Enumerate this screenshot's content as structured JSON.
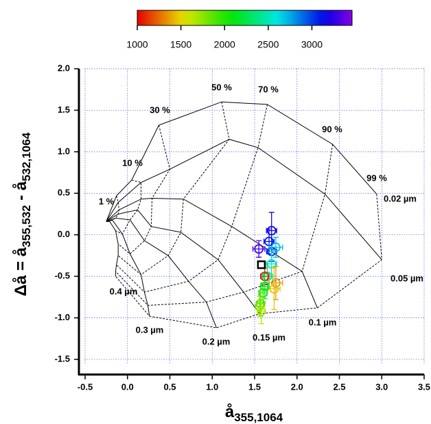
{
  "chart_data": {
    "type": "scatter",
    "xlabel": "å",
    "xlabel_sub": "355,1064",
    "ylabel_parts": [
      "Δå = å",
      "355,532",
      " - å",
      "532,1064"
    ],
    "xlim": [
      -0.5,
      3.5
    ],
    "xticks": [
      -0.5,
      {
        "value": 0,
        "label": "0.0"
      },
      0.5,
      {
        "value": 1,
        "label": "1.0"
      },
      1.5,
      {
        "value": 2,
        "label": "2.0"
      },
      2.5,
      {
        "value": 3,
        "label": "3.0"
      },
      3.5
    ],
    "ylim": [
      -1.55,
      2.0
    ],
    "yticks": [
      -1.5,
      {
        "value": -1,
        "label": "-1.0"
      },
      -0.5,
      {
        "value": 0,
        "label": "0.0"
      },
      0.5,
      {
        "value": 1,
        "label": "1.0"
      },
      1.5,
      {
        "value": 2,
        "label": "2.0"
      }
    ],
    "grid": true,
    "colorbar": {
      "clim": [
        1000,
        3460
      ],
      "ticks": [
        1000,
        1500,
        2000,
        2500,
        3000
      ],
      "colormap": "rainbow"
    },
    "points": {
      "x": [
        1.7,
        1.55,
        1.7,
        1.67,
        1.75,
        1.7,
        1.65,
        1.62,
        1.75,
        1.73,
        1.62,
        1.6,
        1.57,
        1.56,
        1.58
      ],
      "y": [
        0.05,
        -0.17,
        -0.2,
        -0.08,
        -0.15,
        -0.35,
        -0.5,
        -0.5,
        -0.58,
        -0.65,
        -0.62,
        -0.7,
        -0.83,
        -0.86,
        -0.92
      ],
      "xerr": [
        0.06,
        0.07,
        0.06,
        0.06,
        0.08,
        0.06,
        0.06,
        0.05,
        0.08,
        0.07,
        0.05,
        0.05,
        0.05,
        0.05,
        0.04
      ],
      "yerr": [
        0.22,
        0.1,
        0.12,
        0.15,
        0.12,
        0.15,
        0.15,
        0.1,
        0.2,
        0.25,
        0.15,
        0.12,
        0.15,
        0.12,
        0.15
      ],
      "c": [
        3200,
        3300,
        3050,
        3100,
        2700,
        2550,
        2400,
        1050,
        1350,
        1450,
        2150,
        2000,
        1900,
        1800,
        1650
      ]
    },
    "reference": {
      "x": 1.58,
      "y": -0.36,
      "color": "#000000"
    },
    "classification": {
      "convergence": {
        "x": -0.25,
        "y": 0.16
      },
      "fraction_labels": [
        "1 %",
        "10 %",
        "30 %",
        "50 %",
        "70 %",
        "90 %",
        "99 %"
      ],
      "radii": [
        {
          "label": "0.02  µm",
          "x": [
            -0.13,
            0.05,
            0.37,
            1.11,
            1.65,
            2.42,
            2.94
          ],
          "y": [
            0.47,
            0.66,
            1.32,
            1.6,
            1.57,
            1.09,
            0.49
          ]
        },
        {
          "label": "0.05  µm",
          "x": [
            -0.11,
            0.16,
            0.5,
            1.2,
            1.54,
            2.33,
            3.0
          ],
          "y": [
            0.39,
            0.63,
            0.79,
            1.15,
            1.05,
            0.49,
            -0.3
          ]
        },
        {
          "label": "0.1  µm",
          "x": [
            -0.1,
            0.16,
            0.29,
            0.66,
            1.23,
            2.06,
            2.24
          ],
          "y": [
            0.3,
            0.43,
            0.44,
            0.43,
            0.1,
            -0.44,
            -0.88
          ]
        },
        {
          "label": "0.15  µm",
          "x": [
            -0.11,
            0.12,
            0.28,
            0.63,
            1.07,
            1.37,
            1.56
          ],
          "y": [
            0.25,
            0.3,
            0.1,
            0.03,
            -0.3,
            -0.69,
            -0.95
          ]
        },
        {
          "label": "0.2  µm",
          "x": [
            -0.14,
            0.03,
            0.2,
            0.48,
            0.72,
            0.93,
            1.05
          ],
          "y": [
            0.2,
            0.18,
            -0.07,
            -0.25,
            -0.56,
            -0.81,
            -1.12
          ]
        },
        {
          "label": "0.3  µm",
          "x": [
            -0.18,
            -0.06,
            0.03,
            0.16,
            0.2,
            0.24,
            0.26
          ],
          "y": [
            0.18,
            0.01,
            -0.23,
            -0.48,
            -0.69,
            -0.85,
            -0.98
          ]
        },
        {
          "label": "0.4  µm",
          "x": [
            -0.21,
            -0.14,
            -0.11,
            -0.11,
            -0.13,
            -0.14,
            -0.14
          ],
          "y": [
            0.16,
            0.05,
            -0.11,
            -0.25,
            -0.36,
            -0.44,
            -0.5
          ]
        }
      ]
    }
  }
}
